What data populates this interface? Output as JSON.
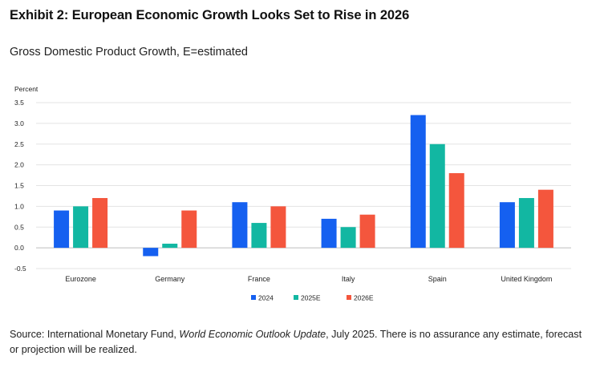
{
  "title": "Exhibit 2: European Economic Growth Looks Set to Rise in 2026",
  "subtitle": "Gross Domestic Product Growth, E=estimated",
  "footnote": {
    "prefix": "Source: International Monetary Fund, ",
    "publication": "World Economic Outlook Update",
    "suffix": ", July 2025. There is no assurance any estimate, forecast or projection will be realized."
  },
  "chart_data": {
    "type": "bar",
    "ylabel": "Percent",
    "xlabel": "",
    "ylim": [
      -0.5,
      3.5
    ],
    "yticks": [
      "3.5",
      "3.0",
      "2.5",
      "2.0",
      "1.5",
      "1.0",
      "0.5",
      "0.0",
      "-0.5"
    ],
    "ytick_values": [
      3.5,
      3.0,
      2.5,
      2.0,
      1.5,
      1.0,
      0.5,
      0.0,
      -0.5
    ],
    "grid": true,
    "legend_position": "bottom-center",
    "categories": [
      "Eurozone",
      "Germany",
      "France",
      "Italy",
      "Spain",
      "United Kingdom"
    ],
    "series": [
      {
        "name": "2024",
        "color": "#1560f0",
        "values": [
          0.9,
          -0.2,
          1.1,
          0.7,
          3.2,
          1.1
        ]
      },
      {
        "name": "2025E",
        "color": "#12b7a2",
        "values": [
          1.0,
          0.1,
          0.6,
          0.5,
          2.5,
          1.2
        ]
      },
      {
        "name": "2026E",
        "color": "#f4563d",
        "values": [
          1.2,
          0.9,
          1.0,
          0.8,
          1.8,
          1.4
        ]
      }
    ]
  }
}
